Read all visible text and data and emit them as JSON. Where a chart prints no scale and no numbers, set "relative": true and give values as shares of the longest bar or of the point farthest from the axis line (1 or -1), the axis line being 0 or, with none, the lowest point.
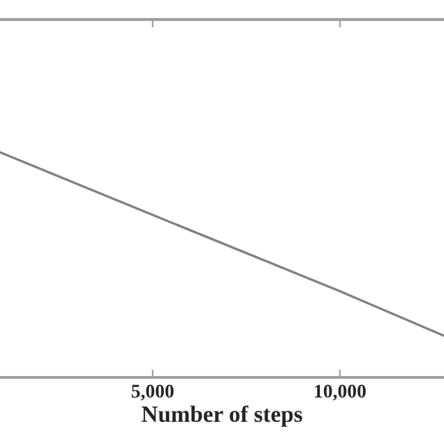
{
  "chart_data": {
    "type": "line",
    "xlabel": "Number of steps",
    "relative": true,
    "x": [
      926,
      5000,
      10000,
      12778
    ],
    "series": [
      {
        "color": "#808080",
        "values": [
          1,
          0.722,
          0.383,
          0.185
        ]
      }
    ],
    "xlim": [
      926,
      12778
    ],
    "xticks": [
      {
        "value": 5000,
        "label": "5,000"
      },
      {
        "value": 10000,
        "label": "10,000"
      }
    ],
    "grid": false,
    "legend": false,
    "marker": "none",
    "line_style": "solid"
  }
}
